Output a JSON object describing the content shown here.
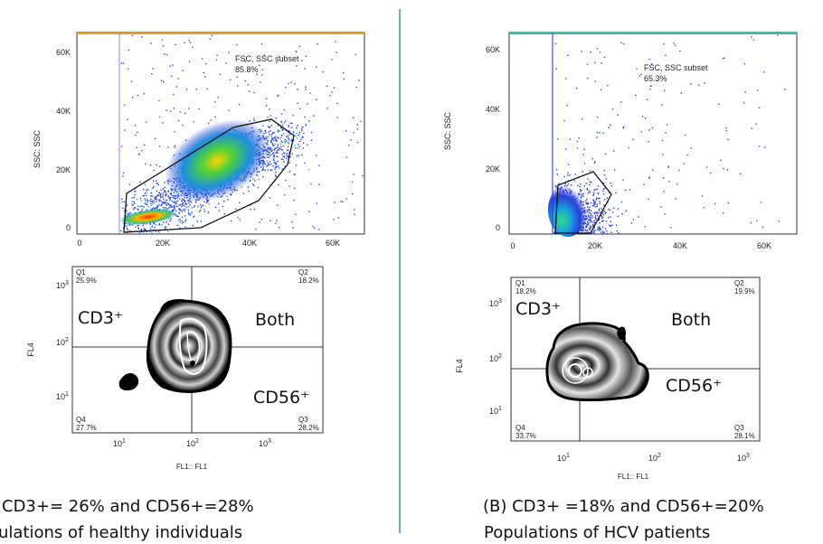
{
  "chart_data": [
    {
      "type": "scatter",
      "panel": "A-top",
      "ylabel": "SSC: SSC",
      "x_ticks": [
        "0",
        "20K",
        "40K",
        "60K"
      ],
      "y_ticks": [
        "0",
        "20K",
        "40K",
        "60K"
      ],
      "xlim": [
        0,
        65000
      ],
      "ylim": [
        0,
        65000
      ],
      "gate_label": "FSC, SSC subset",
      "gate_percent": "85.8%",
      "gate_polygon": [
        [
          11000,
          1000
        ],
        [
          14000,
          13000
        ],
        [
          36000,
          36000
        ],
        [
          44000,
          37000
        ],
        [
          50000,
          23000
        ],
        [
          44000,
          8000
        ],
        [
          30000,
          2000
        ]
      ]
    },
    {
      "type": "scatter",
      "panel": "A-bottom",
      "xlabel": "FL1:: FL1",
      "ylabel": "FL4",
      "x_ticks": [
        "10^1",
        "10^2",
        "10^3"
      ],
      "y_ticks": [
        "10^1",
        "10^2",
        "10^3"
      ],
      "quadrants": {
        "Q1": "25.9%",
        "Q2": "18.2%",
        "Q3": "28.2%",
        "Q4": "27.7%"
      },
      "annotations": {
        "tl": "CD3⁺",
        "tr": "Both",
        "br": "CD56⁺"
      }
    },
    {
      "type": "scatter",
      "panel": "B-top",
      "ylabel": "SSC: SSC",
      "x_ticks": [
        "0",
        "20K",
        "40K",
        "60K"
      ],
      "y_ticks": [
        "0",
        "20K",
        "40K",
        "60K"
      ],
      "xlim": [
        0,
        65000
      ],
      "ylim": [
        0,
        65000
      ],
      "gate_label": "FSC, SSC subset",
      "gate_percent": "65.3%",
      "gate_polygon": [
        [
          10000,
          0
        ],
        [
          12000,
          15000
        ],
        [
          20000,
          19000
        ],
        [
          24000,
          10000
        ],
        [
          18000,
          500
        ]
      ]
    },
    {
      "type": "scatter",
      "panel": "B-bottom",
      "xlabel": "FL1:: FL1",
      "ylabel": "FL4",
      "x_ticks": [
        "10^1",
        "10^2",
        "10^3"
      ],
      "y_ticks": [
        "10^1",
        "10^2",
        "10^3"
      ],
      "quadrants": {
        "Q1": "18.2%",
        "Q2": "19.9%",
        "Q3": "28.1%",
        "Q4": "33.7%"
      },
      "annotations": {
        "tl": "CD3⁺",
        "tr": "Both",
        "br": "CD56⁺"
      }
    }
  ],
  "captions": {
    "a_line1": "CD3+= 26% and CD56+=28%",
    "a_line2": "ulations of healthy individuals",
    "b_line1": "(B) CD3+ =18% and CD56+=20%",
    "b_line2": "Populations of HCV patients"
  },
  "colors": {
    "divider": "#4a86c8",
    "gate": "#111111"
  }
}
